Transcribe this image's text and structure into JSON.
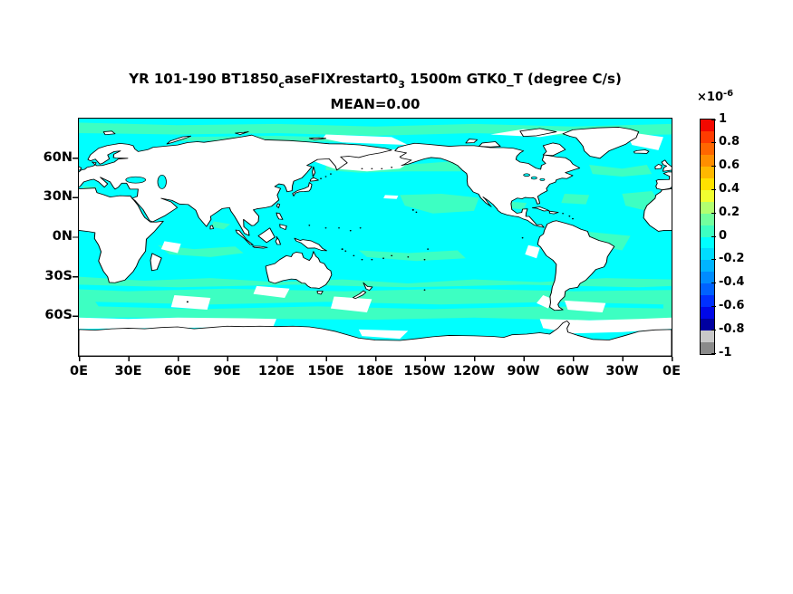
{
  "title": {
    "part1": "YR 101-190 BT1850",
    "sub1": "c",
    "part2": "aseFIXrestart0",
    "sub2": "3",
    "part3": " 1500m GTK0_T (degree C/s)",
    "line2": "MEAN=0.00"
  },
  "axes": {
    "x_ticks": [
      "0E",
      "30E",
      "60E",
      "90E",
      "120E",
      "150E",
      "180E",
      "150W",
      "120W",
      "90W",
      "60W",
      "30W",
      "0E"
    ],
    "y_ticks": [
      "60N",
      "30N",
      "0N",
      "30S",
      "60S"
    ]
  },
  "colorbar": {
    "scale_base": "×10",
    "scale_exp": "-6",
    "tick_labels": [
      "1",
      "0.8",
      "0.6",
      "0.4",
      "0.2",
      "0",
      "-0.2",
      "-0.4",
      "-0.6",
      "-0.8",
      "-1"
    ],
    "segment_colors": [
      "#f30800",
      "#ff3c00",
      "#ff6600",
      "#ff8e00",
      "#ffb800",
      "#ffe200",
      "#f0ff30",
      "#b2ff70",
      "#72ff9e",
      "#3dffc2",
      "#00ffff",
      "#00dcff",
      "#00b4ff",
      "#008cff",
      "#0062ff",
      "#0030ff",
      "#0008e8",
      "#0000a0",
      "#c8c8c8",
      "#8a8a8a"
    ]
  },
  "map_colors": {
    "ocean": "#00ffff",
    "positive_band": "#3dffc2",
    "land": "#ffffff",
    "coastline": "#000000",
    "masked": "#ffffff"
  },
  "chart_data": {
    "type": "heatmap",
    "title": "YR 101-190 BT1850_caseFIXrestart0_3 1500m GTK0_T (degree C/s)",
    "subtitle": "MEAN=0.00",
    "projection": "equirectangular world map, longitude 0E eastward to 0E (0-360), latitude 90N-90S",
    "x_tick_labels": [
      "0E",
      "30E",
      "60E",
      "90E",
      "120E",
      "150E",
      "180E",
      "150W",
      "120W",
      "90W",
      "60W",
      "30W",
      "0E"
    ],
    "y_tick_labels": [
      "60N",
      "30N",
      "0N",
      "30S",
      "60S"
    ],
    "colorbar": {
      "scale_factor": "1e-6",
      "min": -1,
      "max": 1,
      "tick_step": 0.2,
      "n_segments": 20,
      "bottom_two_segments": "gray (light gray -0.8 to -0.9, dark gray -0.9 to -1)"
    },
    "field_summary": "GTK0_T tendency at 1500 m is near zero everywhere: ocean mostly in the -0.1 to 0 band (bright cyan) with broad 0 to +0.1 patches (pale aquamarine) in the Arctic, subtropical gyres and a wavy Southern Ocean band near 35S-60S; white masked areas near Antarctica, Bering/Okhotsk seas, Kerguelen, south of Australia/New Zealand, Falklands region and Nordic seas; continents masked white with black coastlines",
    "legend_position": "right vertical colorbar",
    "grid": false
  }
}
